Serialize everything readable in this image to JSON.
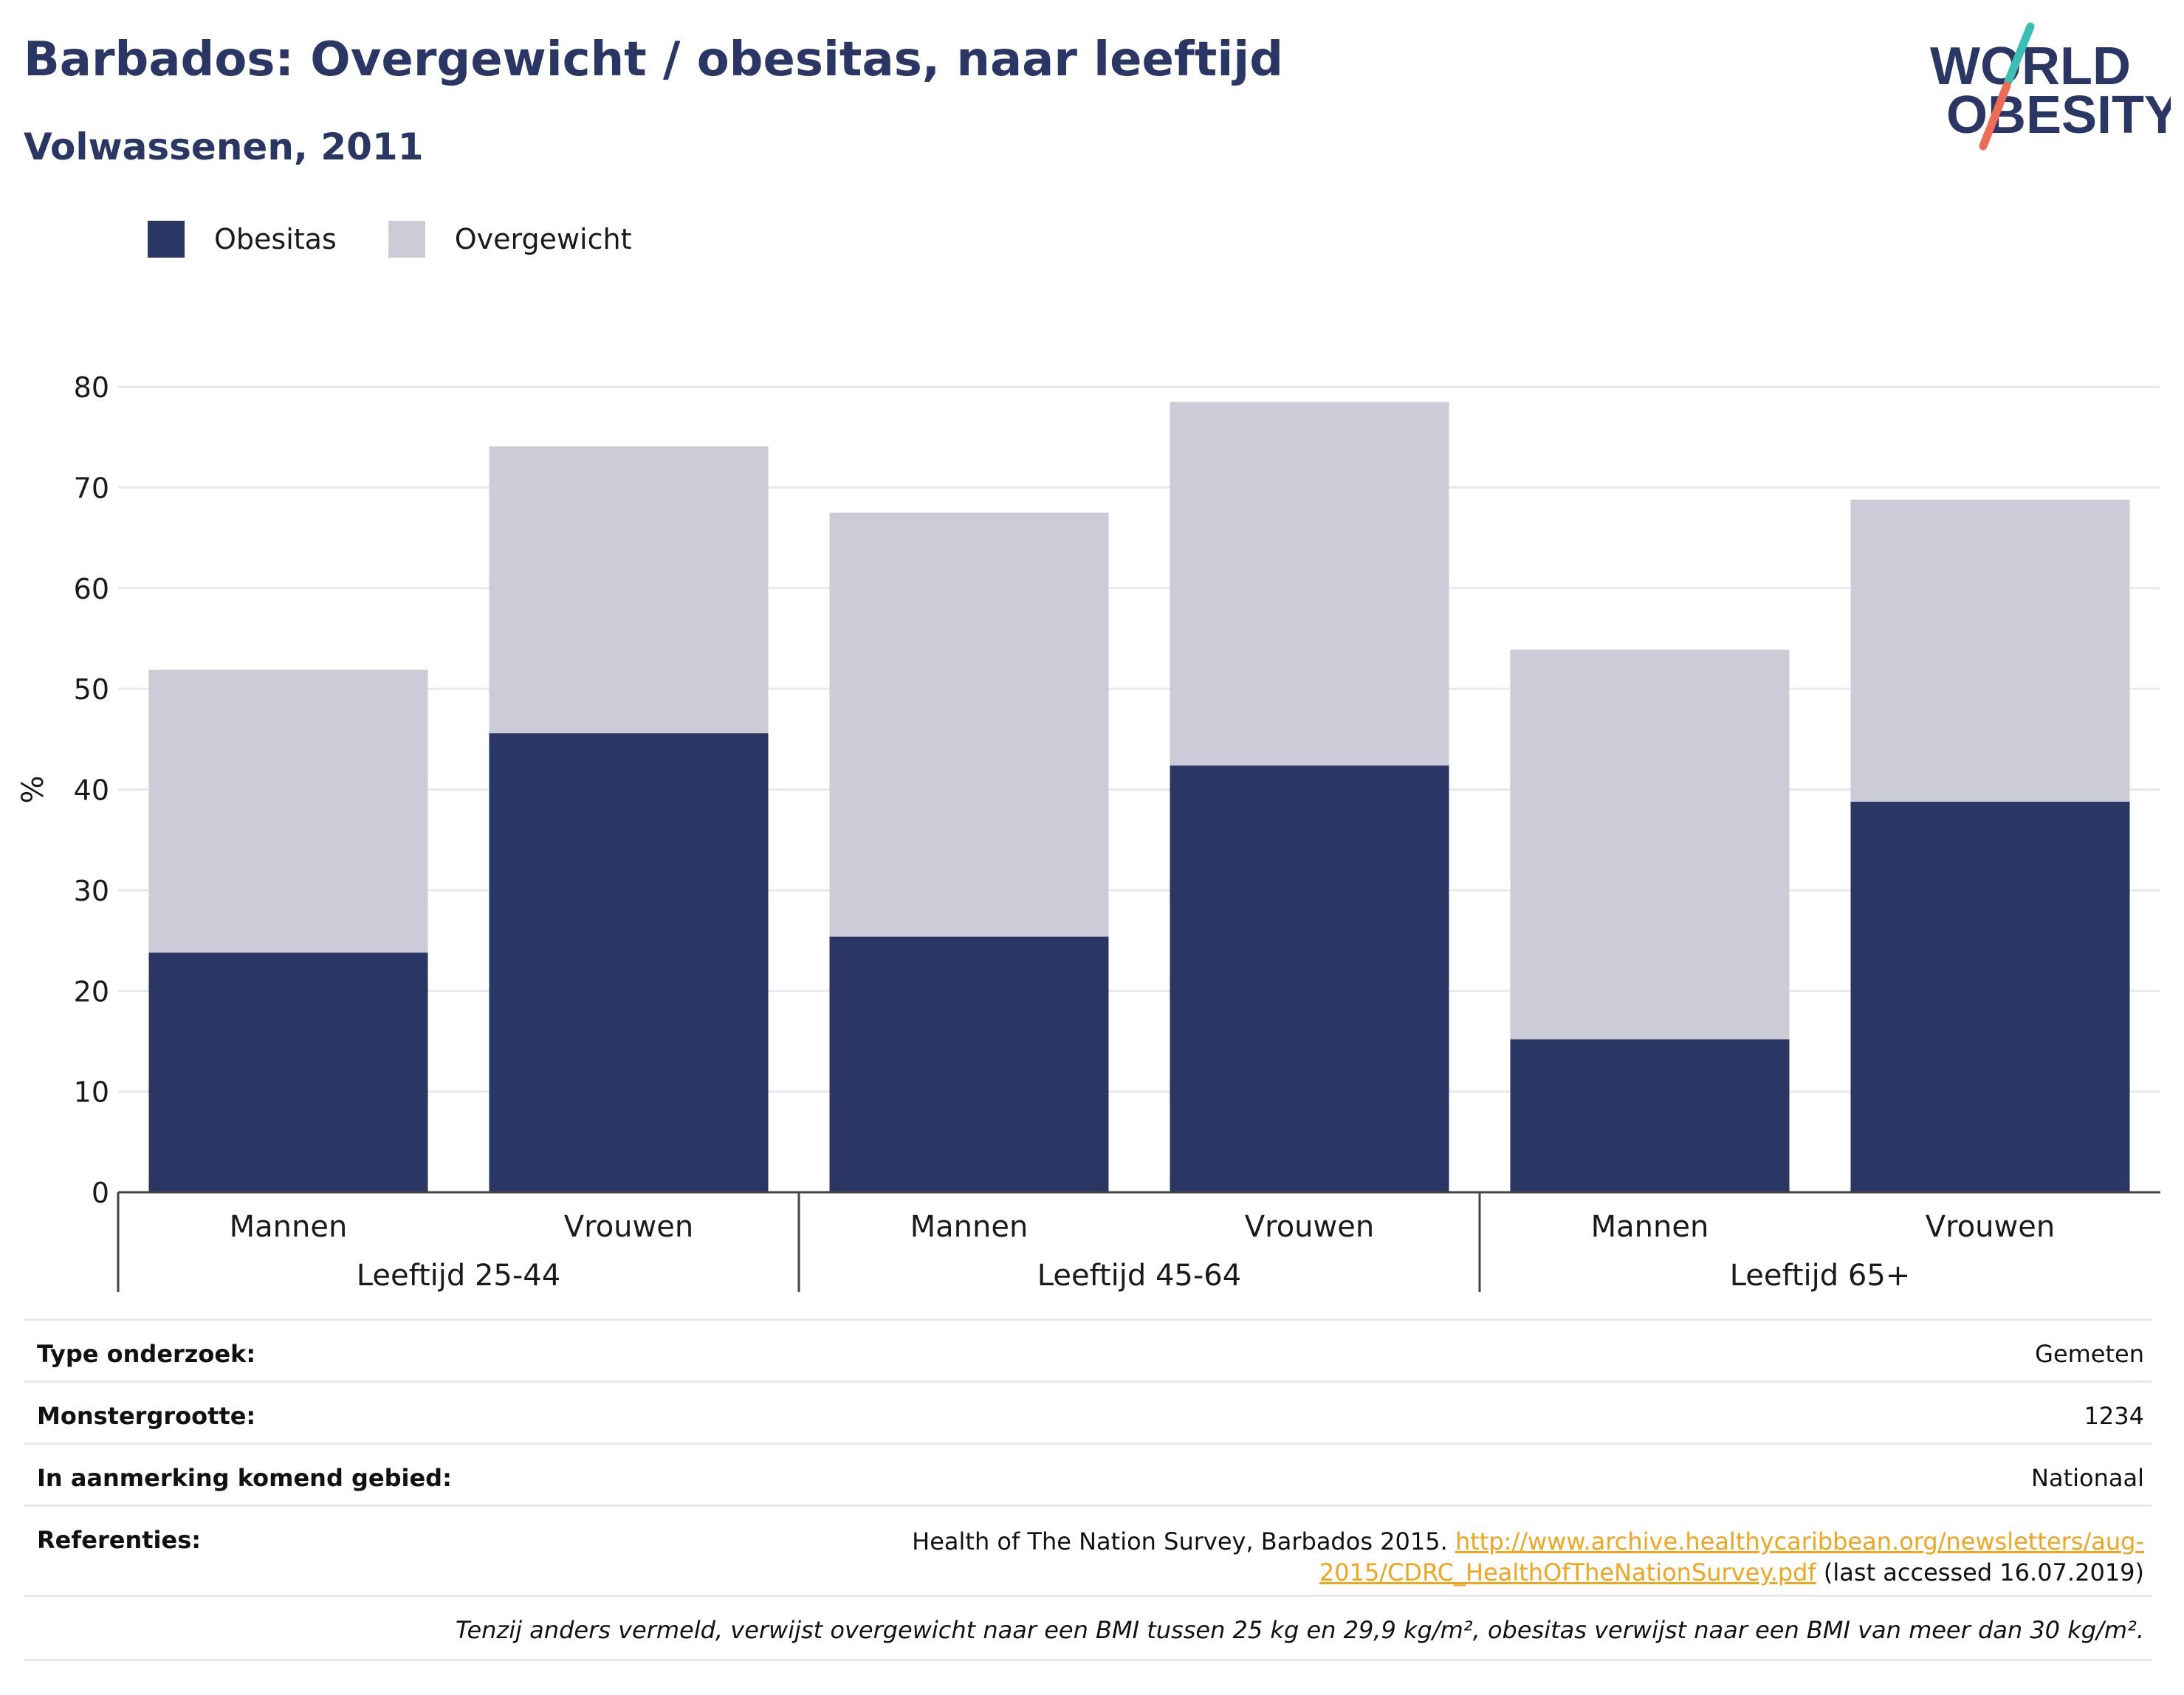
{
  "header": {
    "title": "Barbados: Overgewicht / obesitas, naar leeftijd",
    "subtitle": "Volwassenen, 2011"
  },
  "logo": {
    "line1": "WORLD",
    "line2": "OBESITY"
  },
  "colors": {
    "obesitas": "#2a3663",
    "overgewicht": "#cbccd8",
    "accent_teal": "#3bbfb4",
    "accent_coral": "#ee6c55"
  },
  "chart_data": {
    "type": "bar",
    "stacked": true,
    "ylabel": "%",
    "ylim": [
      0,
      80
    ],
    "yticks": [
      0,
      10,
      20,
      30,
      40,
      50,
      60,
      70,
      80
    ],
    "grid": true,
    "legend_position": "top-left",
    "groups": [
      {
        "label": "Leeftijd 25-44",
        "categories": [
          "Mannen",
          "Vrouwen"
        ]
      },
      {
        "label": "Leeftijd 45-64",
        "categories": [
          "Mannen",
          "Vrouwen"
        ]
      },
      {
        "label": "Leeftijd 65+",
        "categories": [
          "Mannen",
          "Vrouwen"
        ]
      }
    ],
    "categories": [
      "Mannen",
      "Vrouwen",
      "Mannen",
      "Vrouwen",
      "Mannen",
      "Vrouwen"
    ],
    "series": [
      {
        "name": "Obesitas",
        "values": [
          23.8,
          45.6,
          25.4,
          42.4,
          15.2,
          38.8
        ]
      },
      {
        "name": "Overgewicht",
        "values": [
          28.1,
          28.5,
          42.1,
          36.1,
          38.7,
          30.0
        ]
      }
    ]
  },
  "info": {
    "type_label": "Type onderzoek:",
    "type_value": "Gemeten",
    "sample_label": "Monstergrootte:",
    "sample_value": "1234",
    "area_label": "In aanmerking komend gebied:",
    "area_value": "Nationaal",
    "ref_label": "Referenties:",
    "ref_text": "Health of The Nation Survey, Barbados 2015.",
    "ref_link_line1": "http://www.archive.healthycaribbean.org/newsletters/aug-",
    "ref_link_line2": "2015/CDRC_HealthOfTheNationSurvey.pdf",
    "ref_suffix": "(last accessed 16.07.2019)",
    "note": "Tenzij anders vermeld, verwijst overgewicht naar een BMI tussen 25 kg en 29,9 kg/m², obesitas verwijst naar een BMI van meer dan 30 kg/m²."
  }
}
